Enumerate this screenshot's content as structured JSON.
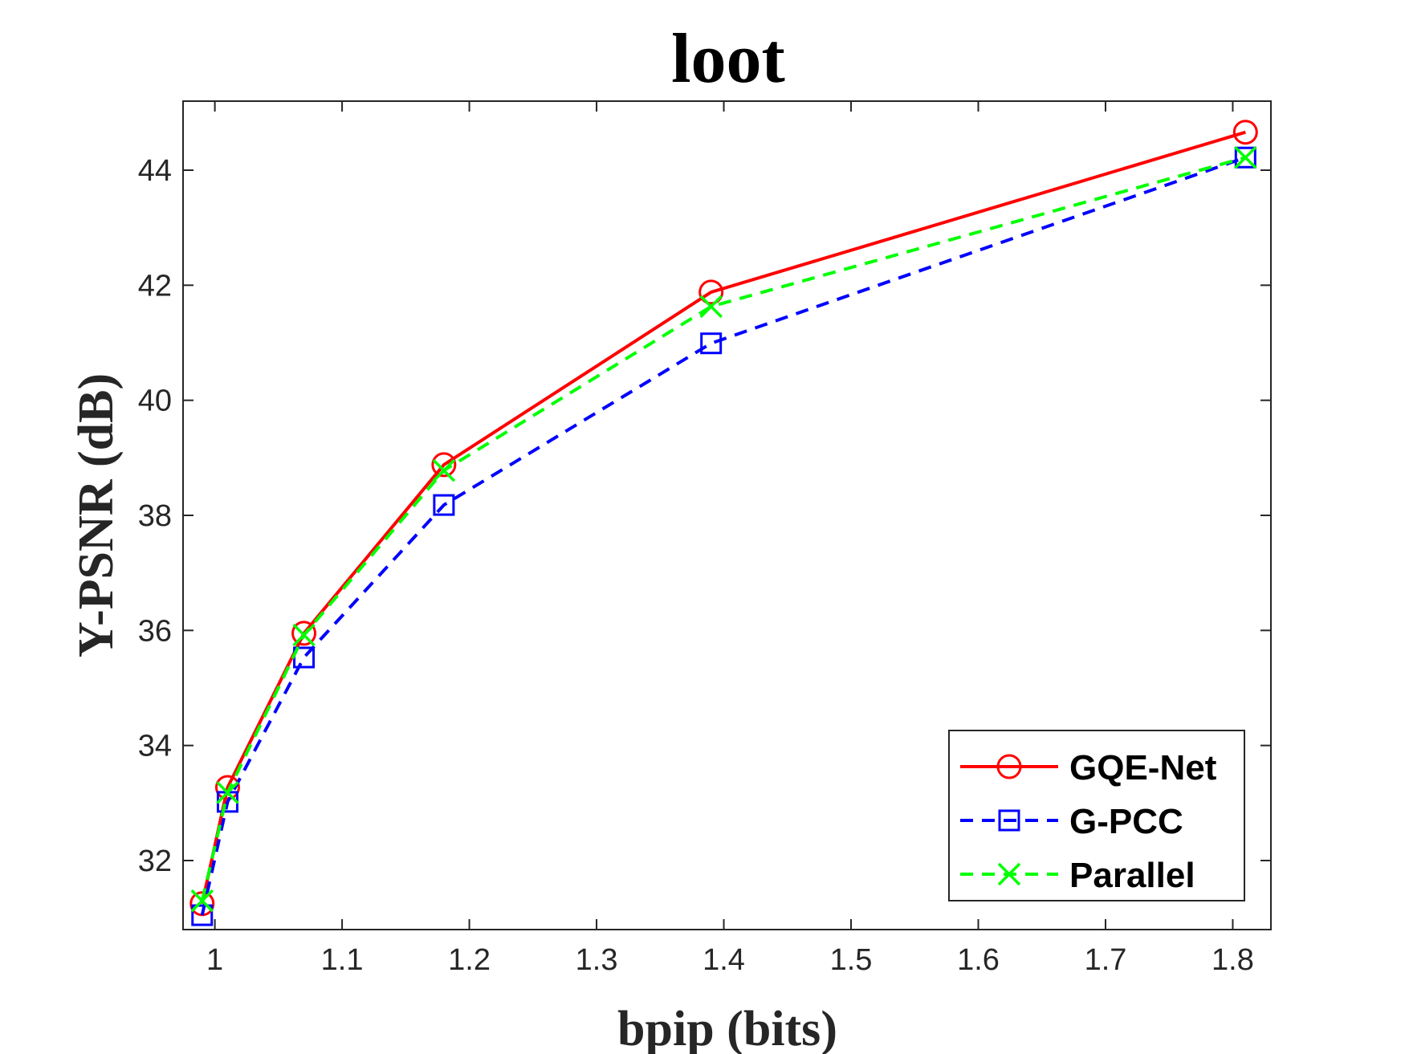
{
  "chart_data": {
    "type": "line",
    "title": "loot",
    "xlabel": "bpip (bits)",
    "ylabel": "Y-PSNR (dB)",
    "xlim": [
      0.975,
      1.83
    ],
    "ylim": [
      30.8,
      45.2
    ],
    "xticks": [
      1,
      1.1,
      1.2,
      1.3,
      1.4,
      1.5,
      1.6,
      1.7,
      1.8
    ],
    "xtick_labels": [
      "1",
      "1.1",
      "1.2",
      "1.3",
      "1.4",
      "1.5",
      "1.6",
      "1.7",
      "1.8"
    ],
    "yticks": [
      32,
      34,
      36,
      38,
      40,
      42,
      44
    ],
    "ytick_labels": [
      "32",
      "34",
      "36",
      "38",
      "40",
      "42",
      "44"
    ],
    "legend_position": "bottom-right",
    "series": [
      {
        "name": "GQE-Net",
        "color": "#ff0000",
        "line_style": "solid",
        "marker": "circle",
        "x": [
          0.99,
          1.01,
          1.07,
          1.18,
          1.39,
          1.81
        ],
        "y": [
          31.25,
          33.27,
          35.95,
          38.88,
          41.88,
          44.66
        ]
      },
      {
        "name": "G-PCC",
        "color": "#0000ff",
        "line_style": "dashed",
        "marker": "square",
        "x": [
          0.99,
          1.01,
          1.07,
          1.18,
          1.39,
          1.81
        ],
        "y": [
          31.05,
          33.02,
          35.53,
          38.18,
          40.99,
          44.22
        ]
      },
      {
        "name": "Parallel",
        "color": "#00ff00",
        "line_style": "dashed",
        "marker": "x",
        "x": [
          0.99,
          1.01,
          1.07,
          1.18,
          1.39,
          1.81
        ],
        "y": [
          31.3,
          33.18,
          35.92,
          38.78,
          41.63,
          44.22
        ]
      }
    ]
  }
}
